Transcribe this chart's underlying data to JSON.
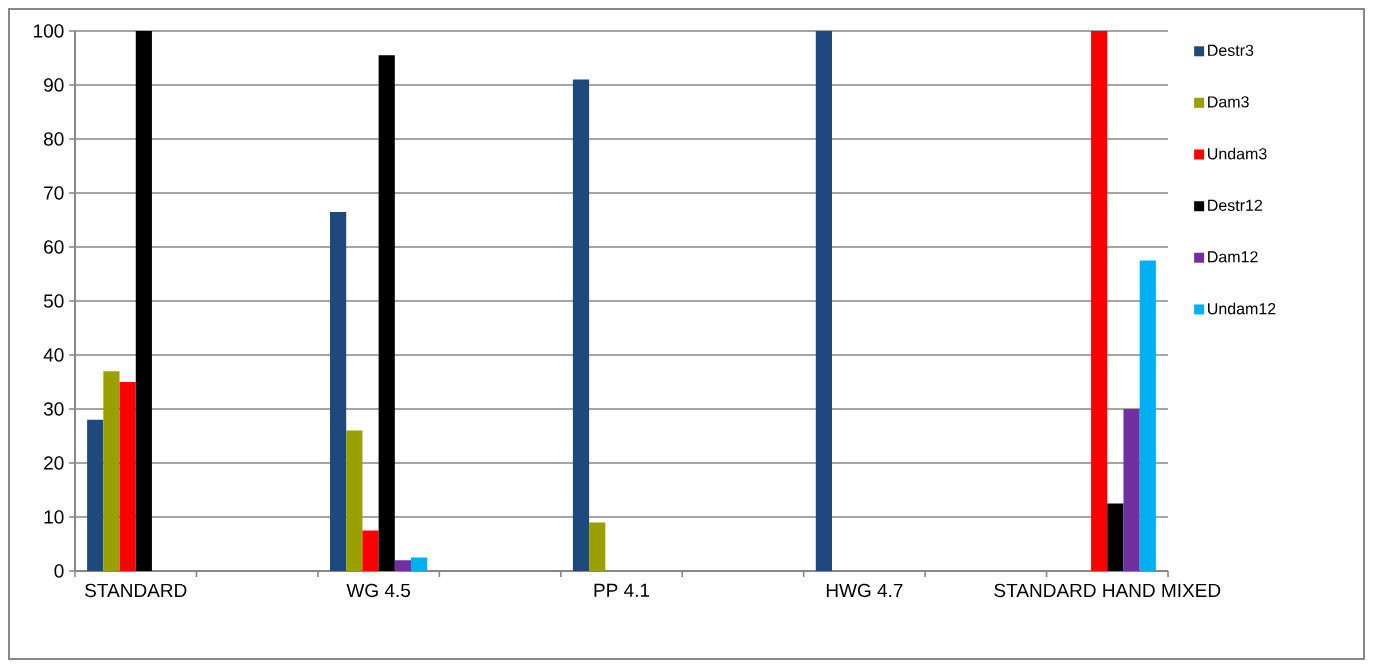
{
  "chart_data": {
    "type": "bar",
    "categories": [
      "STANDARD",
      null,
      "WG 4.5",
      null,
      "PP 4.1",
      null,
      "HWG 4.7",
      null,
      "STANDARD HAND MIXED"
    ],
    "series": [
      {
        "name": "Destr3",
        "color": "#1f497d",
        "values": [
          28,
          null,
          66.5,
          null,
          91,
          null,
          100,
          null,
          null
        ]
      },
      {
        "name": "Dam3",
        "color": "#99a000",
        "values": [
          37,
          null,
          26,
          null,
          9,
          null,
          null,
          null,
          null
        ]
      },
      {
        "name": "Undam3",
        "color": "#ff0000",
        "values": [
          35,
          null,
          7.5,
          null,
          null,
          null,
          null,
          null,
          100
        ]
      },
      {
        "name": "Destr12",
        "color": "#000000",
        "values": [
          100,
          null,
          95.5,
          null,
          null,
          null,
          null,
          null,
          12.5
        ]
      },
      {
        "name": "Dam12",
        "color": "#7030a0",
        "values": [
          null,
          null,
          2,
          null,
          null,
          null,
          null,
          null,
          30
        ]
      },
      {
        "name": "Undam12",
        "color": "#00b0f0",
        "values": [
          null,
          null,
          2.5,
          null,
          null,
          null,
          null,
          null,
          57.5
        ]
      }
    ],
    "ylim": [
      0,
      100
    ],
    "yticks": [
      0,
      10,
      20,
      30,
      40,
      50,
      60,
      70,
      80,
      90,
      100
    ],
    "grid": "y",
    "legend": "right"
  }
}
